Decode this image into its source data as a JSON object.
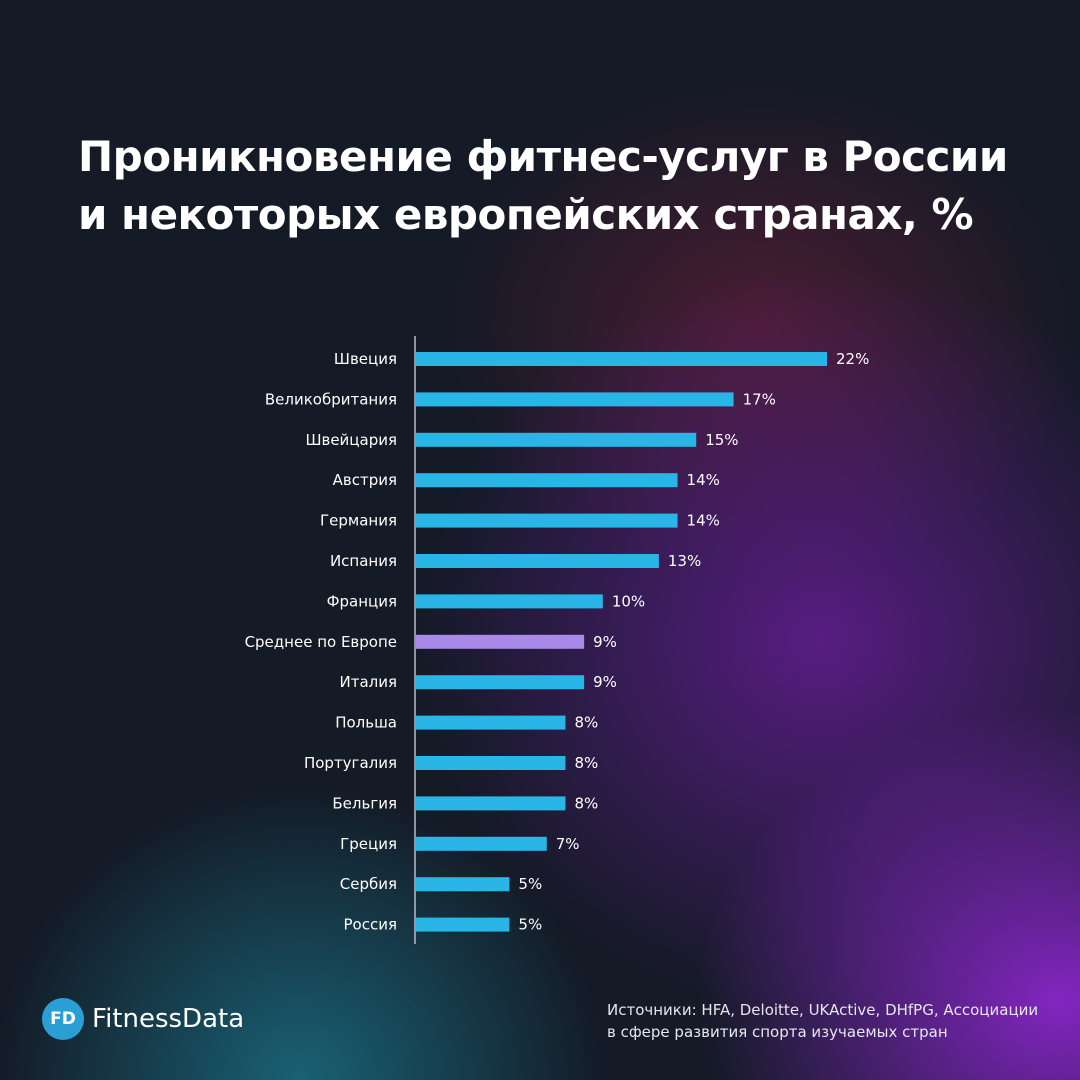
{
  "title": {
    "line1": "Проникновение фитнес-услуг в России",
    "line2": "и некоторых европейских странах, %"
  },
  "chart_data": {
    "type": "bar",
    "orientation": "horizontal",
    "categories": [
      "Швеция",
      "Великобритания",
      "Швейцария",
      "Австрия",
      "Германия",
      "Испания",
      "Франция",
      "Среднее по Европе",
      "Италия",
      "Польша",
      "Португалия",
      "Бельгия",
      "Греция",
      "Сербия",
      "Россия"
    ],
    "values": [
      22,
      17,
      15,
      14,
      14,
      13,
      10,
      9,
      9,
      8,
      8,
      8,
      7,
      5,
      5
    ],
    "value_labels": [
      "22%",
      "17%",
      "15%",
      "14%",
      "14%",
      "13%",
      "10%",
      "9%",
      "9%",
      "8%",
      "8%",
      "8%",
      "7%",
      "5%",
      "5%"
    ],
    "highlight_category": "Среднее по Европе",
    "xlim": [
      0,
      22
    ],
    "grid": false,
    "colors": {
      "bar": "#29b6e6",
      "highlight": "#a98ae8",
      "axis": "#b9bcc8"
    }
  },
  "logo": {
    "badge": "FD",
    "name": "FitnessData",
    "badge_color": "#2a9fd6"
  },
  "source": {
    "line1": "Источники: HFA, Deloitte, UKActive, DHfPG, Ассоциации",
    "line2": "в сфере развития спорта изучаемых стран"
  }
}
